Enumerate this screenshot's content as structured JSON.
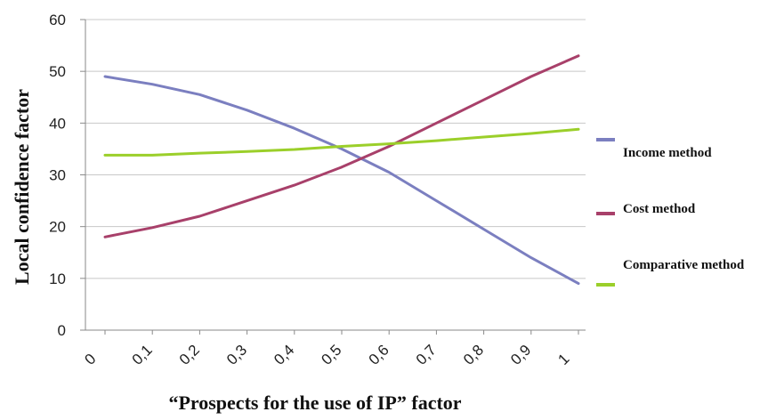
{
  "chart_data": {
    "type": "line",
    "title": "",
    "xlabel": "“Prospects for the use of IP” factor",
    "ylabel": "Local confidence factor",
    "x_tick_labels": [
      "0",
      "0,1",
      "0,2",
      "0,3",
      "0,4",
      "0,5",
      "0,6",
      "0,7",
      "0,8",
      "0,9",
      "1"
    ],
    "y_tick_labels": [
      "0",
      "10",
      "20",
      "30",
      "40",
      "50",
      "60"
    ],
    "ylim": [
      0,
      60
    ],
    "x": [
      0,
      0.1,
      0.2,
      0.3,
      0.4,
      0.5,
      0.6,
      0.7,
      0.8,
      0.9,
      1
    ],
    "grid": "horizontal",
    "legend_position": "right",
    "series": [
      {
        "name": "Income method",
        "color": "#7b7fc0",
        "values": [
          49,
          47.5,
          45.5,
          42.5,
          39,
          35,
          30.5,
          25,
          19.5,
          14,
          9
        ]
      },
      {
        "name": "Cost method",
        "color": "#a8406a",
        "values": [
          18,
          19.8,
          22,
          25,
          28,
          31.5,
          35.5,
          40,
          44.5,
          49,
          53
        ]
      },
      {
        "name": "Comparative method",
        "color": "#9bcf2a",
        "values": [
          33.8,
          33.8,
          34.2,
          34.5,
          34.9,
          35.5,
          36,
          36.6,
          37.3,
          38,
          38.8
        ]
      }
    ]
  }
}
